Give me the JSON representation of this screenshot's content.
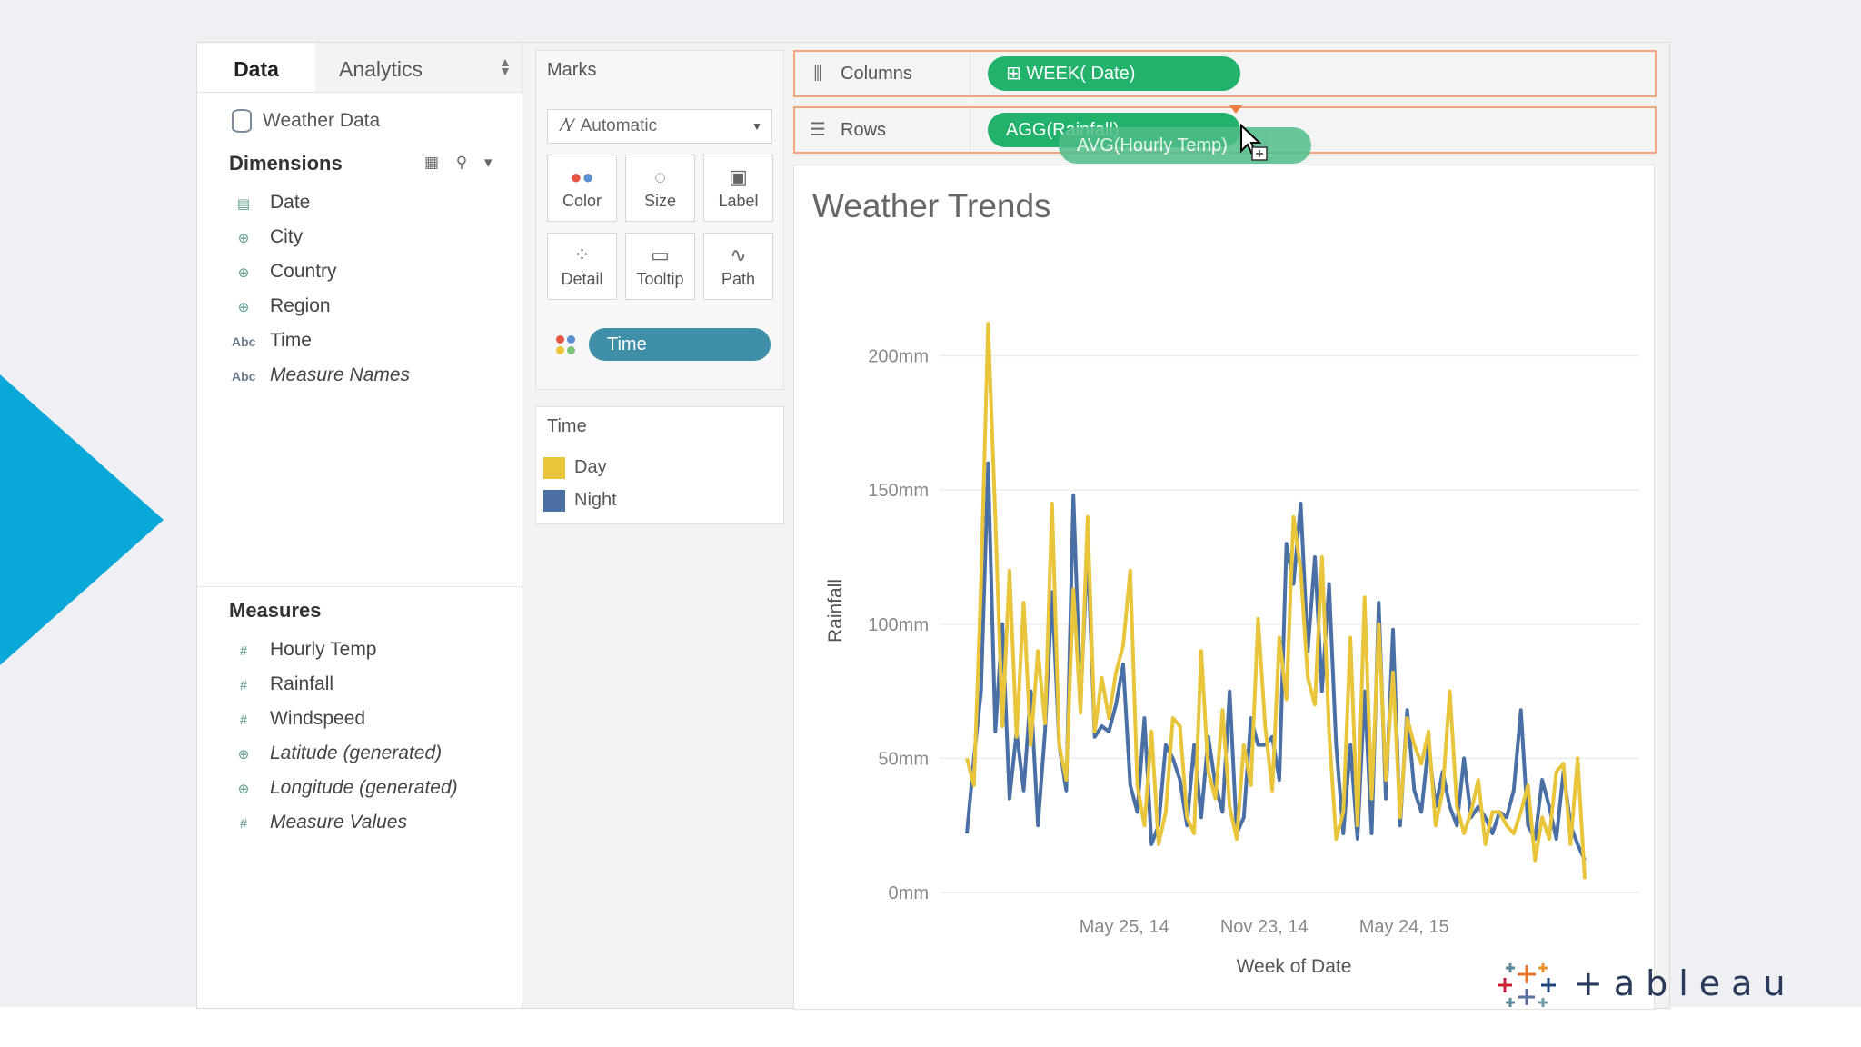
{
  "tabs": {
    "data": "Data",
    "analytics": "Analytics"
  },
  "data_source": "Weather Data",
  "dimensions": {
    "title": "Dimensions",
    "items": [
      {
        "icon": "calendar-icon",
        "label": "Date",
        "italic": false
      },
      {
        "icon": "globe-icon",
        "label": "City",
        "italic": false
      },
      {
        "icon": "globe-icon",
        "label": "Country",
        "italic": false
      },
      {
        "icon": "globe-icon",
        "label": "Region",
        "italic": false
      },
      {
        "icon": "abc-icon",
        "label": "Time",
        "italic": false
      },
      {
        "icon": "abc-icon",
        "label": "Measure Names",
        "italic": true
      }
    ]
  },
  "measures": {
    "title": "Measures",
    "items": [
      {
        "icon": "hash-icon",
        "label": "Hourly Temp",
        "italic": false
      },
      {
        "icon": "hash-icon",
        "label": "Rainfall",
        "italic": false
      },
      {
        "icon": "hash-icon",
        "label": "Windspeed",
        "italic": false
      },
      {
        "icon": "globe-icon",
        "label": "Latitude (generated)",
        "italic": true
      },
      {
        "icon": "globe-icon",
        "label": "Longitude (generated)",
        "italic": true
      },
      {
        "icon": "hash-icon",
        "label": "Measure Values",
        "italic": true
      }
    ]
  },
  "marks": {
    "title": "Marks",
    "type": "Automatic",
    "buttons": [
      "Color",
      "Size",
      "Label",
      "Detail",
      "Tooltip",
      "Path"
    ],
    "color_pill": "Time"
  },
  "legend": {
    "title": "Time",
    "items": [
      {
        "label": "Day",
        "color": "#e8c53a"
      },
      {
        "label": "Night",
        "color": "#4a6fa5"
      }
    ]
  },
  "shelves": {
    "columns_label": "Columns",
    "columns_pill": "WEEK( Date)",
    "rows_label": "Rows",
    "rows_pill": "AGG(Rainfall)",
    "dragging_pill": "AVG(Hourly Temp)"
  },
  "logo_text": "+ableau",
  "chart_data": {
    "type": "line",
    "title": "Weather Trends",
    "xlabel": "Week of Date",
    "ylabel": "Rainfall",
    "x_ticks": [
      "May 25, 14",
      "Nov 23, 14",
      "May 24, 15"
    ],
    "y_ticks": [
      "0mm",
      "50mm",
      "100mm",
      "150mm",
      "200mm"
    ],
    "y_tick_values": [
      0,
      50,
      100,
      150,
      200
    ],
    "ylim": [
      0,
      210
    ],
    "grid": true,
    "legend": "none",
    "series": [
      {
        "name": "Day",
        "color": "#e8c53a",
        "values": [
          50,
          40,
          115,
          212,
          140,
          62,
          120,
          58,
          108,
          55,
          90,
          63,
          145,
          55,
          42,
          113,
          67,
          140,
          60,
          80,
          65,
          82,
          92,
          120,
          40,
          25,
          60,
          18,
          30,
          65,
          62,
          28,
          22,
          90,
          45,
          35,
          68,
          32,
          20,
          55,
          40,
          102,
          62,
          38,
          95,
          72,
          140,
          120,
          80,
          70,
          125,
          60,
          20,
          30,
          95,
          25,
          110,
          35,
          100,
          42,
          82,
          28,
          65,
          55,
          48,
          60,
          25,
          38,
          75,
          32,
          22,
          30,
          42,
          18,
          30,
          30,
          25,
          22,
          30,
          40,
          12,
          28,
          20,
          45,
          48,
          18,
          50,
          5
        ]
      },
      {
        "name": "Night",
        "color": "#4a6fa5",
        "values": [
          22,
          50,
          75,
          160,
          60,
          100,
          35,
          60,
          38,
          75,
          25,
          60,
          112,
          55,
          38,
          148,
          72,
          128,
          58,
          62,
          60,
          70,
          85,
          40,
          30,
          65,
          18,
          25,
          55,
          50,
          42,
          25,
          55,
          28,
          58,
          40,
          30,
          75,
          22,
          28,
          65,
          55,
          55,
          58,
          42,
          130,
          115,
          145,
          90,
          125,
          75,
          115,
          55,
          22,
          55,
          20,
          75,
          22,
          108,
          35,
          98,
          25,
          68,
          38,
          30,
          55,
          32,
          45,
          32,
          25,
          50,
          28,
          32,
          28,
          22,
          30,
          28,
          38,
          68,
          25,
          20,
          42,
          32,
          20,
          45,
          25,
          18,
          12
        ]
      }
    ]
  }
}
